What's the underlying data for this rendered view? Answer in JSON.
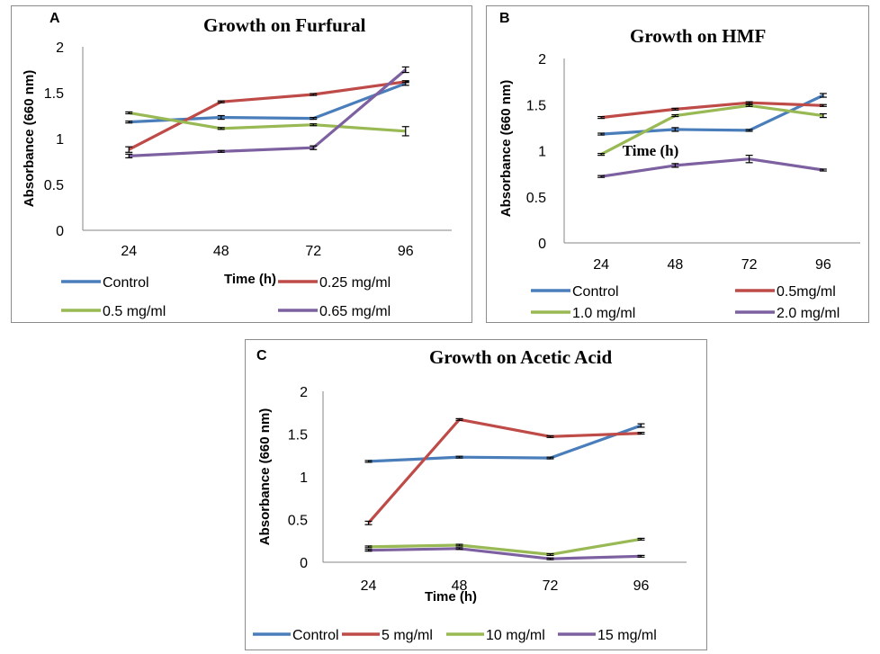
{
  "chart_data": [
    {
      "type": "line",
      "panel_label": "A",
      "title": "Growth on Furfural",
      "xlabel": "Time (h)",
      "ylabel": "Absorbance (660 nm)",
      "categories": [
        "24",
        "48",
        "72",
        "96"
      ],
      "ylim": [
        0,
        2
      ],
      "yticks": [
        "0",
        "0.5",
        "1",
        "1.5",
        "2"
      ],
      "legend_placement": "bottom",
      "series": [
        {
          "name": "Control",
          "color": "#4a7ebb",
          "values": [
            1.18,
            1.23,
            1.22,
            1.6
          ],
          "errors": [
            0.01,
            0.02,
            0.01,
            0.02
          ]
        },
        {
          "name": "0.25 mg/ml",
          "color": "#be4b48",
          "values": [
            0.88,
            1.4,
            1.48,
            1.62
          ],
          "errors": [
            0.03,
            0.01,
            0.01,
            0.01
          ]
        },
        {
          "name": "0.5 mg/ml",
          "color": "#98b954",
          "values": [
            1.28,
            1.11,
            1.15,
            1.08
          ],
          "errors": [
            0.01,
            0.01,
            0.01,
            0.05
          ]
        },
        {
          "name": "0.65 mg/ml",
          "color": "#7d60a0",
          "values": [
            0.81,
            0.86,
            0.9,
            1.75
          ],
          "errors": [
            0.02,
            0.01,
            0.02,
            0.03
          ]
        }
      ]
    },
    {
      "type": "line",
      "panel_label": "B",
      "title": "Growth on HMF",
      "xlabel": "Time (h)",
      "ylabel": "Absorbance (660 nm)",
      "categories": [
        "24",
        "48",
        "72",
        "96"
      ],
      "ylim": [
        0,
        2
      ],
      "yticks": [
        "0",
        "0.5",
        "1",
        "1.5",
        "2"
      ],
      "legend_placement": "bottom",
      "series": [
        {
          "name": "Control",
          "color": "#4a7ebb",
          "values": [
            1.18,
            1.23,
            1.22,
            1.6
          ],
          "errors": [
            0.01,
            0.02,
            0.01,
            0.02
          ]
        },
        {
          "name": "0.5mg/ml",
          "color": "#be4b48",
          "values": [
            1.36,
            1.45,
            1.52,
            1.49
          ],
          "errors": [
            0.01,
            0.01,
            0.01,
            0.01
          ]
        },
        {
          "name": "1.0 mg/ml",
          "color": "#98b954",
          "values": [
            0.96,
            1.38,
            1.49,
            1.38
          ],
          "errors": [
            0.01,
            0.01,
            0.01,
            0.02
          ]
        },
        {
          "name": "2.0 mg/ml",
          "color": "#7d60a0",
          "values": [
            0.72,
            0.84,
            0.91,
            0.79
          ],
          "errors": [
            0.01,
            0.02,
            0.04,
            0.01
          ]
        }
      ]
    },
    {
      "type": "line",
      "panel_label": "C",
      "title": "Growth on Acetic Acid",
      "xlabel": "Time (h)",
      "ylabel": "Absorbance (660 nm)",
      "categories": [
        "24",
        "48",
        "72",
        "96"
      ],
      "ylim": [
        0,
        2
      ],
      "yticks": [
        "0",
        "0.5",
        "1",
        "1.5",
        "2"
      ],
      "legend_placement": "bottom",
      "series": [
        {
          "name": "Control",
          "color": "#4a7ebb",
          "values": [
            1.18,
            1.23,
            1.22,
            1.6
          ],
          "errors": [
            0.01,
            0.01,
            0.01,
            0.02
          ]
        },
        {
          "name": "5 mg/ml",
          "color": "#be4b48",
          "values": [
            0.46,
            1.67,
            1.47,
            1.51
          ],
          "errors": [
            0.02,
            0.01,
            0.01,
            0.01
          ]
        },
        {
          "name": "10 mg/ml",
          "color": "#98b954",
          "values": [
            0.18,
            0.2,
            0.09,
            0.27
          ],
          "errors": [
            0.01,
            0.01,
            0.01,
            0.01
          ]
        },
        {
          "name": "15 mg/ml",
          "color": "#7d60a0",
          "values": [
            0.14,
            0.16,
            0.04,
            0.07
          ],
          "errors": [
            0.01,
            0.01,
            0.01,
            0.01
          ]
        }
      ]
    }
  ]
}
